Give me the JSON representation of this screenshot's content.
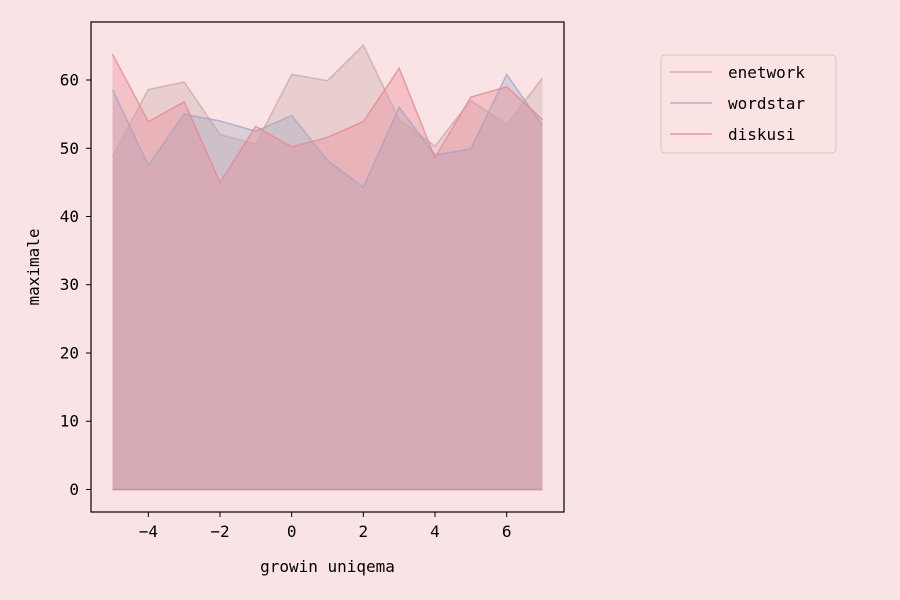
{
  "chart_data": {
    "type": "area",
    "title": "",
    "xlabel": "growin uniqema",
    "ylabel": "maximale",
    "x": [
      -5,
      -4,
      -3,
      -2,
      -1,
      0,
      1,
      2,
      3,
      4,
      5,
      6,
      7
    ],
    "xlim": [
      -5.6,
      7.6
    ],
    "ylim": [
      -3.3,
      68.5
    ],
    "xticks": [
      -4,
      -2,
      0,
      2,
      4,
      6
    ],
    "xtick_labels": [
      "−4",
      "−2",
      "0",
      "2",
      "4",
      "6"
    ],
    "yticks": [
      0,
      10,
      20,
      30,
      40,
      50,
      60
    ],
    "ytick_labels": [
      "0",
      "10",
      "20",
      "30",
      "40",
      "50",
      "60"
    ],
    "grid": false,
    "legend_position": "outside-right-top",
    "series": [
      {
        "name": "enetwork",
        "color": "#c9a6ab",
        "values": [
          48.8,
          58.6,
          59.7,
          52.0,
          50.6,
          60.8,
          59.9,
          65.1,
          54.2,
          50.3,
          57.0,
          53.5,
          60.3
        ]
      },
      {
        "name": "wordstar",
        "color": "#9fa6c4",
        "values": [
          58.6,
          47.5,
          55.0,
          54.0,
          52.5,
          54.8,
          48.2,
          44.3,
          56.0,
          49.0,
          49.9,
          60.8,
          53.3
        ]
      },
      {
        "name": "diskusi",
        "color": "#e9848e",
        "values": [
          63.8,
          53.9,
          56.8,
          45.0,
          53.2,
          50.2,
          51.6,
          53.9,
          61.7,
          48.6,
          57.5,
          59.0,
          54.2
        ]
      }
    ]
  }
}
